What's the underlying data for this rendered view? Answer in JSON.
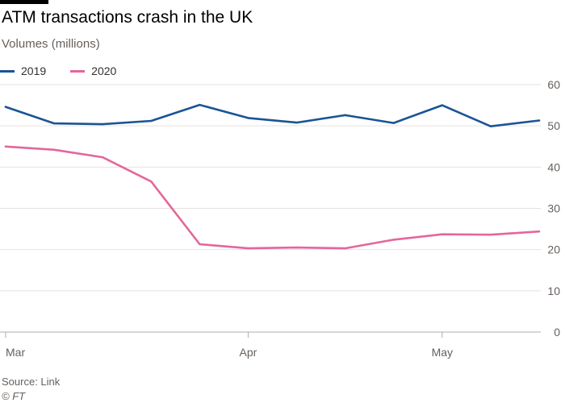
{
  "header": {
    "title": "ATM transactions crash in the UK",
    "subtitle": "Volumes (millions)"
  },
  "footer": {
    "source": "Source: Link",
    "credit": "© FT"
  },
  "legend": [
    {
      "label": "2019",
      "color": "#1a5495"
    },
    {
      "label": "2020",
      "color": "#e4679a"
    }
  ],
  "colors": {
    "grid": "#e6e2df",
    "axis_text": "#66605c",
    "background": "#ffffff"
  },
  "chart_data": {
    "type": "line",
    "title": "ATM transactions crash in the UK",
    "ylabel": "Volumes (millions)",
    "xlabel": "",
    "ylim": [
      0,
      60
    ],
    "yticks": [
      0,
      10,
      20,
      30,
      40,
      50,
      60
    ],
    "x": [
      0,
      1,
      2,
      3,
      4,
      5,
      6,
      7,
      8,
      9,
      10,
      11
    ],
    "xticks": [
      {
        "x": 0,
        "label": "Mar"
      },
      {
        "x": 5,
        "label": "Apr"
      },
      {
        "x": 9,
        "label": "May"
      }
    ],
    "grid": true,
    "legend_position": "top-left",
    "series": [
      {
        "name": "2019",
        "color": "#1a5495",
        "values": [
          54.6,
          50.6,
          50.4,
          51.2,
          55.1,
          51.9,
          50.8,
          52.6,
          50.7,
          55.0,
          49.9,
          51.3
        ]
      },
      {
        "name": "2020",
        "color": "#e4679a",
        "values": [
          45.0,
          44.2,
          42.4,
          36.5,
          21.3,
          20.3,
          20.5,
          20.3,
          22.4,
          23.7,
          23.6,
          24.4
        ]
      }
    ]
  }
}
